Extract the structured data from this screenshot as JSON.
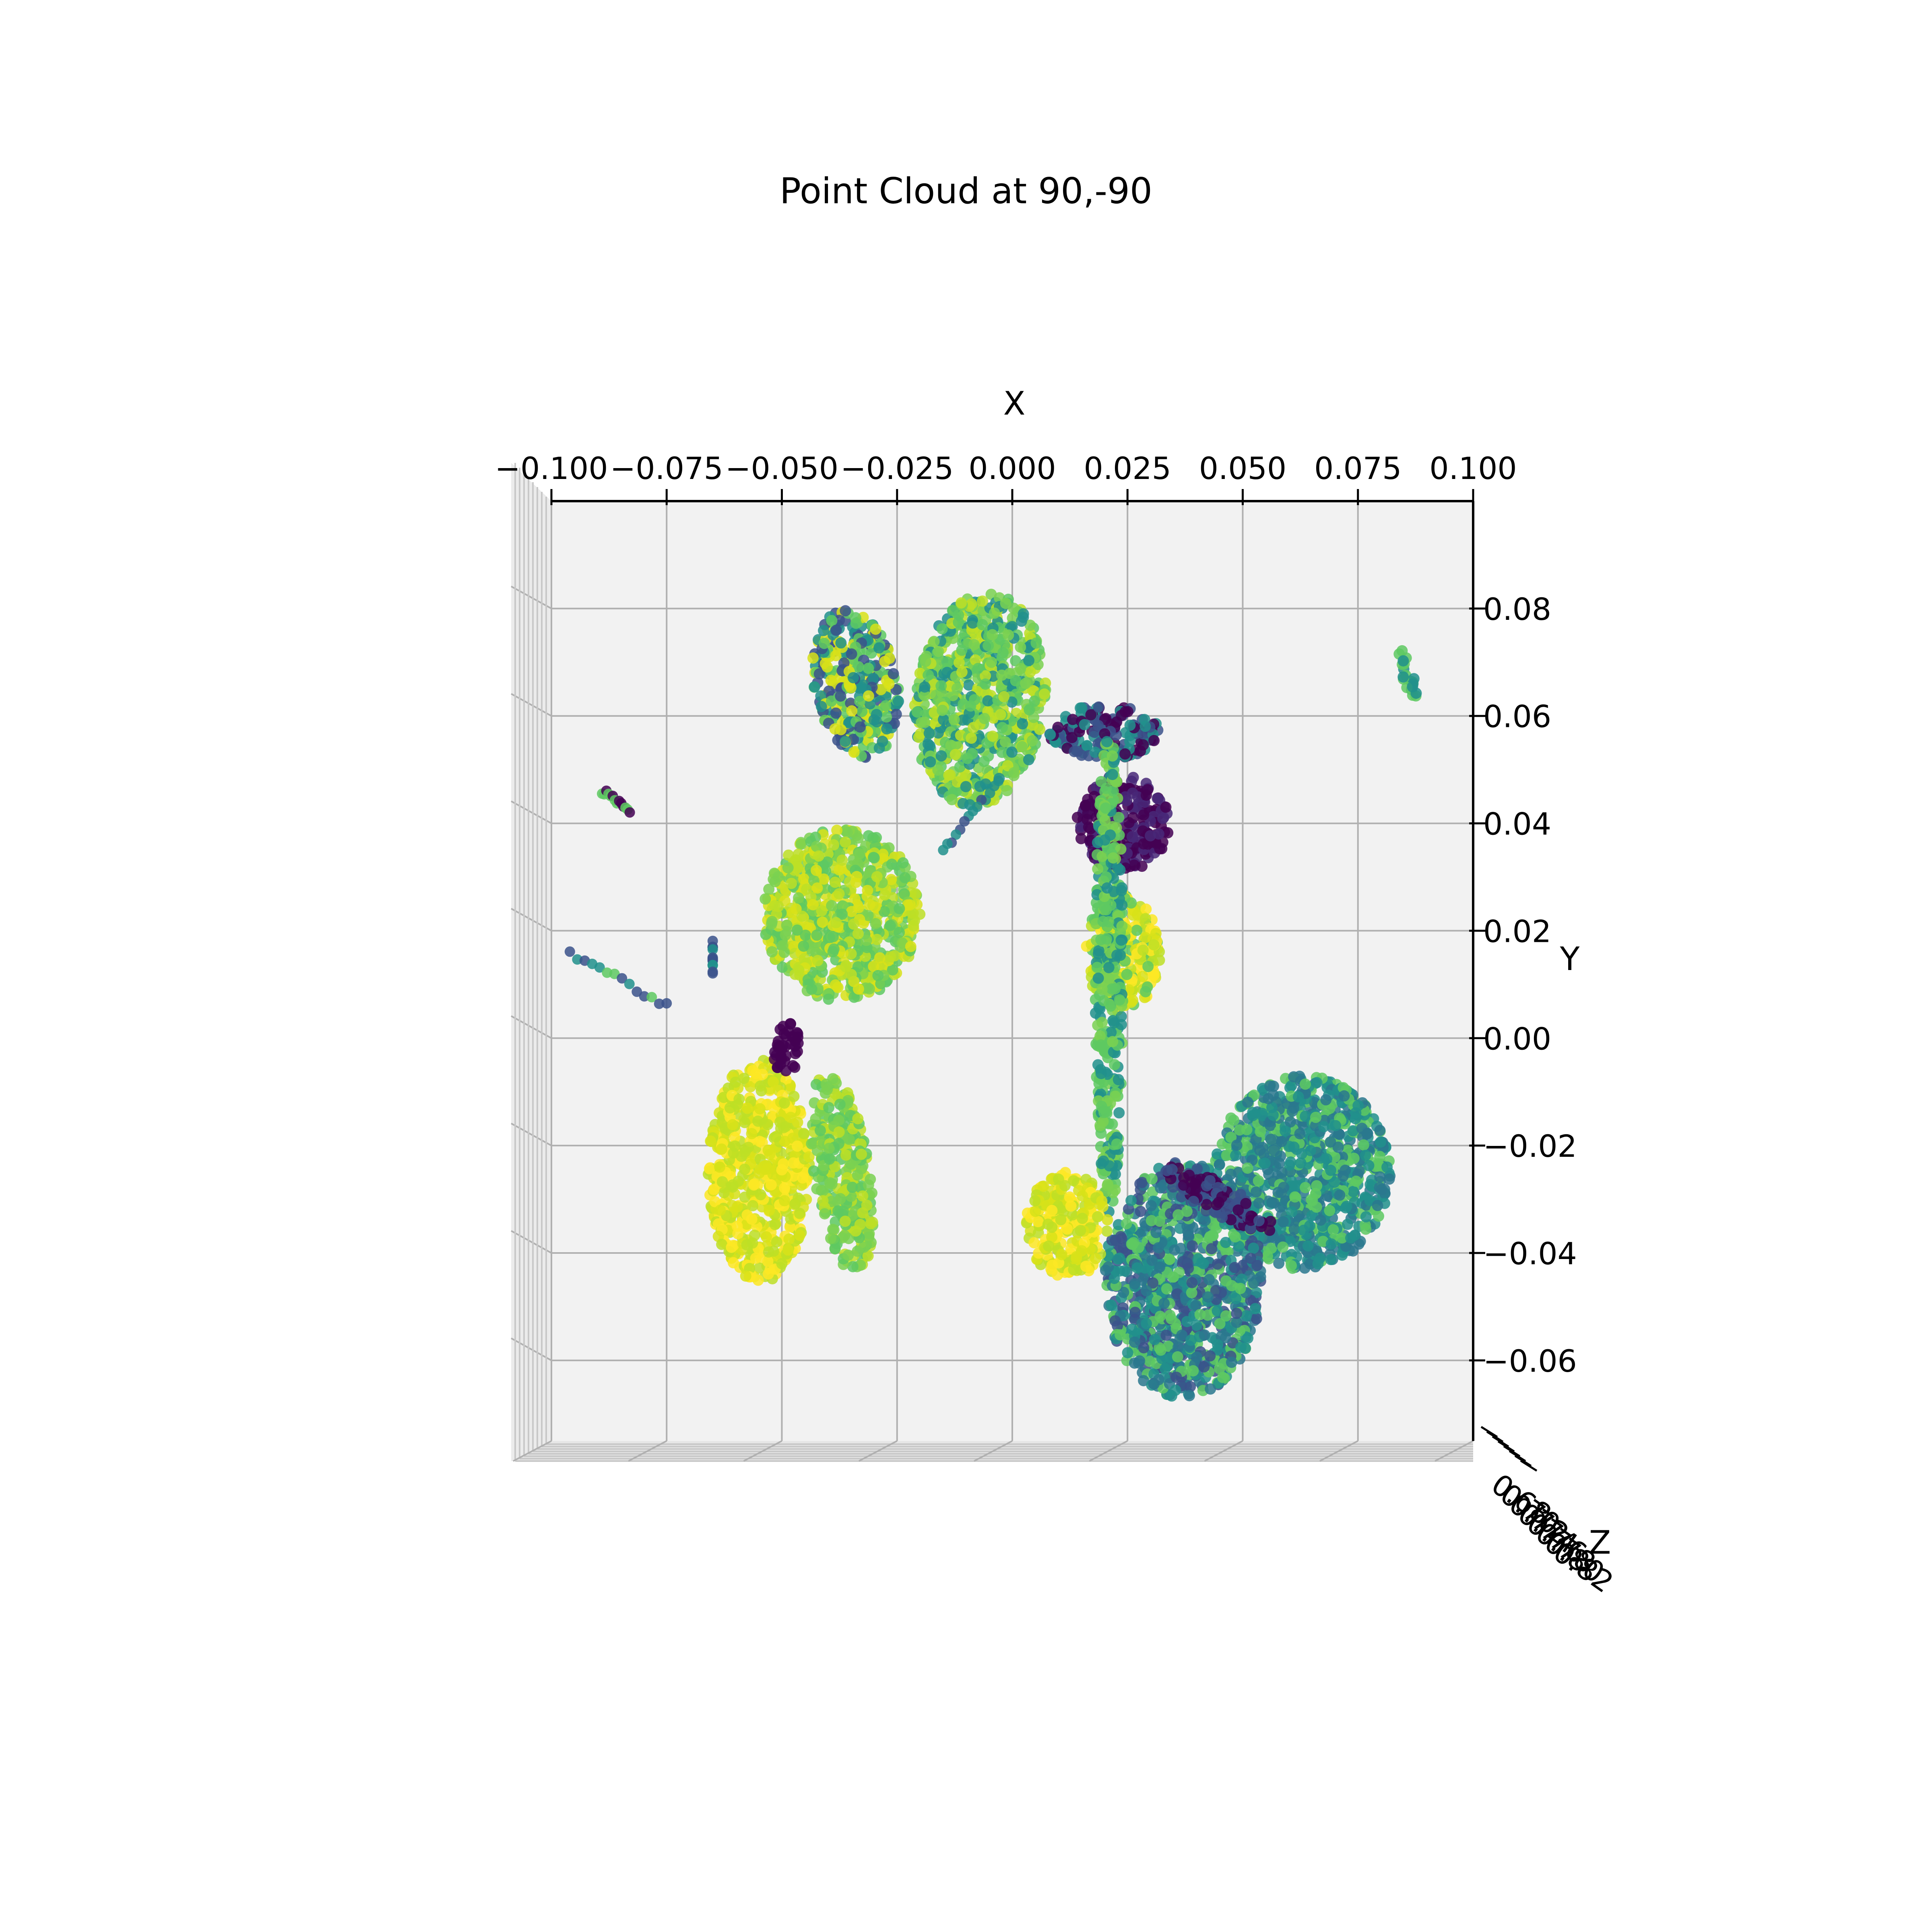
{
  "chart_data": {
    "type": "scatter",
    "projection": "3d",
    "title": "Point Cloud at  90,-90",
    "xlabel": "X",
    "ylabel": "Y",
    "zlabel": "Z",
    "xlim": [
      -0.1,
      0.1
    ],
    "ylim": [
      -0.075,
      0.1
    ],
    "zlim": [
      0.68,
      0.82
    ],
    "x_ticks": [
      -0.1,
      -0.075,
      -0.05,
      -0.025,
      0.0,
      0.025,
      0.05,
      0.075,
      0.1
    ],
    "x_tick_labels": [
      "−0.100",
      "−0.075",
      "−0.050",
      "−0.025",
      "0.000",
      "0.025",
      "0.050",
      "0.075",
      "0.100"
    ],
    "y_ticks": [
      0.08,
      0.06,
      0.04,
      0.02,
      0.0,
      -0.02,
      -0.04,
      -0.06
    ],
    "y_tick_labels": [
      "0.08",
      "0.06",
      "0.04",
      "0.02",
      "0.00",
      "−0.02",
      "−0.04",
      "−0.06"
    ],
    "z_tick_labels": [
      "0.68",
      "0.70",
      "0.72",
      "0.74",
      "0.76",
      "0.78",
      "0.80",
      "0.82"
    ],
    "grid": true,
    "colormap": "viridis",
    "pane_color": "#f2f2f2",
    "grid_color": "#b0b0b0",
    "colors": {
      "dark": "#440154",
      "teal": "#21918c",
      "green": "#5ec962",
      "yellow": "#d8e219",
      "bright": "#fde725"
    },
    "clusters": [
      {
        "name": "upper-left-leaf",
        "shape": "ellipse",
        "cx": -0.034,
        "cy": 0.066,
        "rx": 0.009,
        "ry": 0.014,
        "rot": 15,
        "colors": [
          "#21918c",
          "#3b528b",
          "#5ec962",
          "#d8e219"
        ]
      },
      {
        "name": "upper-center-leaf",
        "shape": "ellipse",
        "cx": -0.007,
        "cy": 0.063,
        "rx": 0.014,
        "ry": 0.02,
        "rot": -10,
        "colors": [
          "#5ec962",
          "#7ad151",
          "#21918c",
          "#bddf26"
        ]
      },
      {
        "name": "central-dark-mass",
        "shape": "ellipse",
        "cx": 0.024,
        "cy": 0.04,
        "rx": 0.01,
        "ry": 0.009,
        "rot": 0,
        "colors": [
          "#440154",
          "#482878"
        ]
      },
      {
        "name": "central-dark-upper",
        "shape": "ellipse",
        "cx": 0.02,
        "cy": 0.057,
        "rx": 0.012,
        "ry": 0.005,
        "rot": 0,
        "colors": [
          "#440154",
          "#21918c",
          "#3b528b"
        ]
      },
      {
        "name": "central-yellow-cluster",
        "shape": "ellipse",
        "cx": 0.024,
        "cy": 0.016,
        "rx": 0.008,
        "ry": 0.011,
        "rot": 0,
        "colors": [
          "#d8e219",
          "#bddf26",
          "#5ec962",
          "#fde725"
        ]
      },
      {
        "name": "stem",
        "shape": "ellipse",
        "cx": 0.021,
        "cy": 0.012,
        "rx": 0.003,
        "ry": 0.045,
        "rot": 0,
        "colors": [
          "#5ec962",
          "#21918c",
          "#7ad151"
        ]
      },
      {
        "name": "left-middle-leaf",
        "shape": "ellipse",
        "cx": -0.037,
        "cy": 0.023,
        "rx": 0.017,
        "ry": 0.016,
        "rot": 0,
        "colors": [
          "#bddf26",
          "#7ad151",
          "#5ec962",
          "#d8e219"
        ]
      },
      {
        "name": "left-lower-leaf",
        "shape": "ellipse",
        "cx": -0.055,
        "cy": -0.025,
        "rx": 0.011,
        "ry": 0.021,
        "rot": 0,
        "colors": [
          "#d8e219",
          "#fde725",
          "#bddf26"
        ]
      },
      {
        "name": "left-lower-narrow-leaf",
        "shape": "ellipse",
        "cx": -0.037,
        "cy": -0.025,
        "rx": 0.006,
        "ry": 0.019,
        "rot": 10,
        "colors": [
          "#7ad151",
          "#5ec962",
          "#bddf26"
        ]
      },
      {
        "name": "left-dark-patch",
        "shape": "ellipse",
        "cx": -0.049,
        "cy": -0.002,
        "rx": 0.003,
        "ry": 0.005,
        "rot": 0,
        "colors": [
          "#440154"
        ]
      },
      {
        "name": "lower-right-leaf",
        "shape": "ellipse",
        "cx": 0.063,
        "cy": -0.025,
        "rx": 0.019,
        "ry": 0.018,
        "rot": 0,
        "colors": [
          "#21918c",
          "#2a788e",
          "#5ec962"
        ]
      },
      {
        "name": "lower-center-leaf",
        "shape": "ellipse",
        "cx": 0.037,
        "cy": -0.045,
        "rx": 0.017,
        "ry": 0.022,
        "rot": 0,
        "colors": [
          "#21918c",
          "#5ec962",
          "#2a788e",
          "#3b528b"
        ]
      },
      {
        "name": "lower-yellow-lobe",
        "shape": "ellipse",
        "cx": 0.012,
        "cy": -0.035,
        "rx": 0.009,
        "ry": 0.01,
        "rot": 0,
        "colors": [
          "#d8e219",
          "#bddf26",
          "#fde725"
        ]
      },
      {
        "name": "lower-dark-strip",
        "shape": "ellipse",
        "cx": 0.045,
        "cy": -0.03,
        "rx": 0.013,
        "ry": 0.003,
        "rot": -25,
        "colors": [
          "#440154",
          "#3b528b"
        ]
      },
      {
        "name": "upper-right-fragment",
        "shape": "ellipse",
        "cx": 0.086,
        "cy": 0.068,
        "rx": 0.0015,
        "ry": 0.005,
        "rot": 20,
        "colors": [
          "#5ec962",
          "#21918c"
        ]
      },
      {
        "name": "left-scatter-line",
        "shape": "line",
        "x0": -0.096,
        "y0": 0.016,
        "x1": -0.075,
        "y1": 0.006,
        "colors": [
          "#21918c",
          "#3b528b",
          "#5ec962"
        ]
      },
      {
        "name": "left-small-vertical",
        "shape": "line",
        "x0": -0.065,
        "y0": 0.018,
        "x1": -0.065,
        "y1": 0.012,
        "colors": [
          "#21918c",
          "#3b528b"
        ]
      },
      {
        "name": "left-dots",
        "shape": "line",
        "x0": -0.089,
        "y0": 0.046,
        "x1": -0.083,
        "y1": 0.042,
        "colors": [
          "#5ec962",
          "#440154"
        ]
      },
      {
        "name": "stem-links",
        "shape": "line",
        "x0": -0.003,
        "y0": 0.048,
        "x1": -0.015,
        "y1": 0.035,
        "colors": [
          "#21918c",
          "#3b528b"
        ]
      }
    ]
  }
}
